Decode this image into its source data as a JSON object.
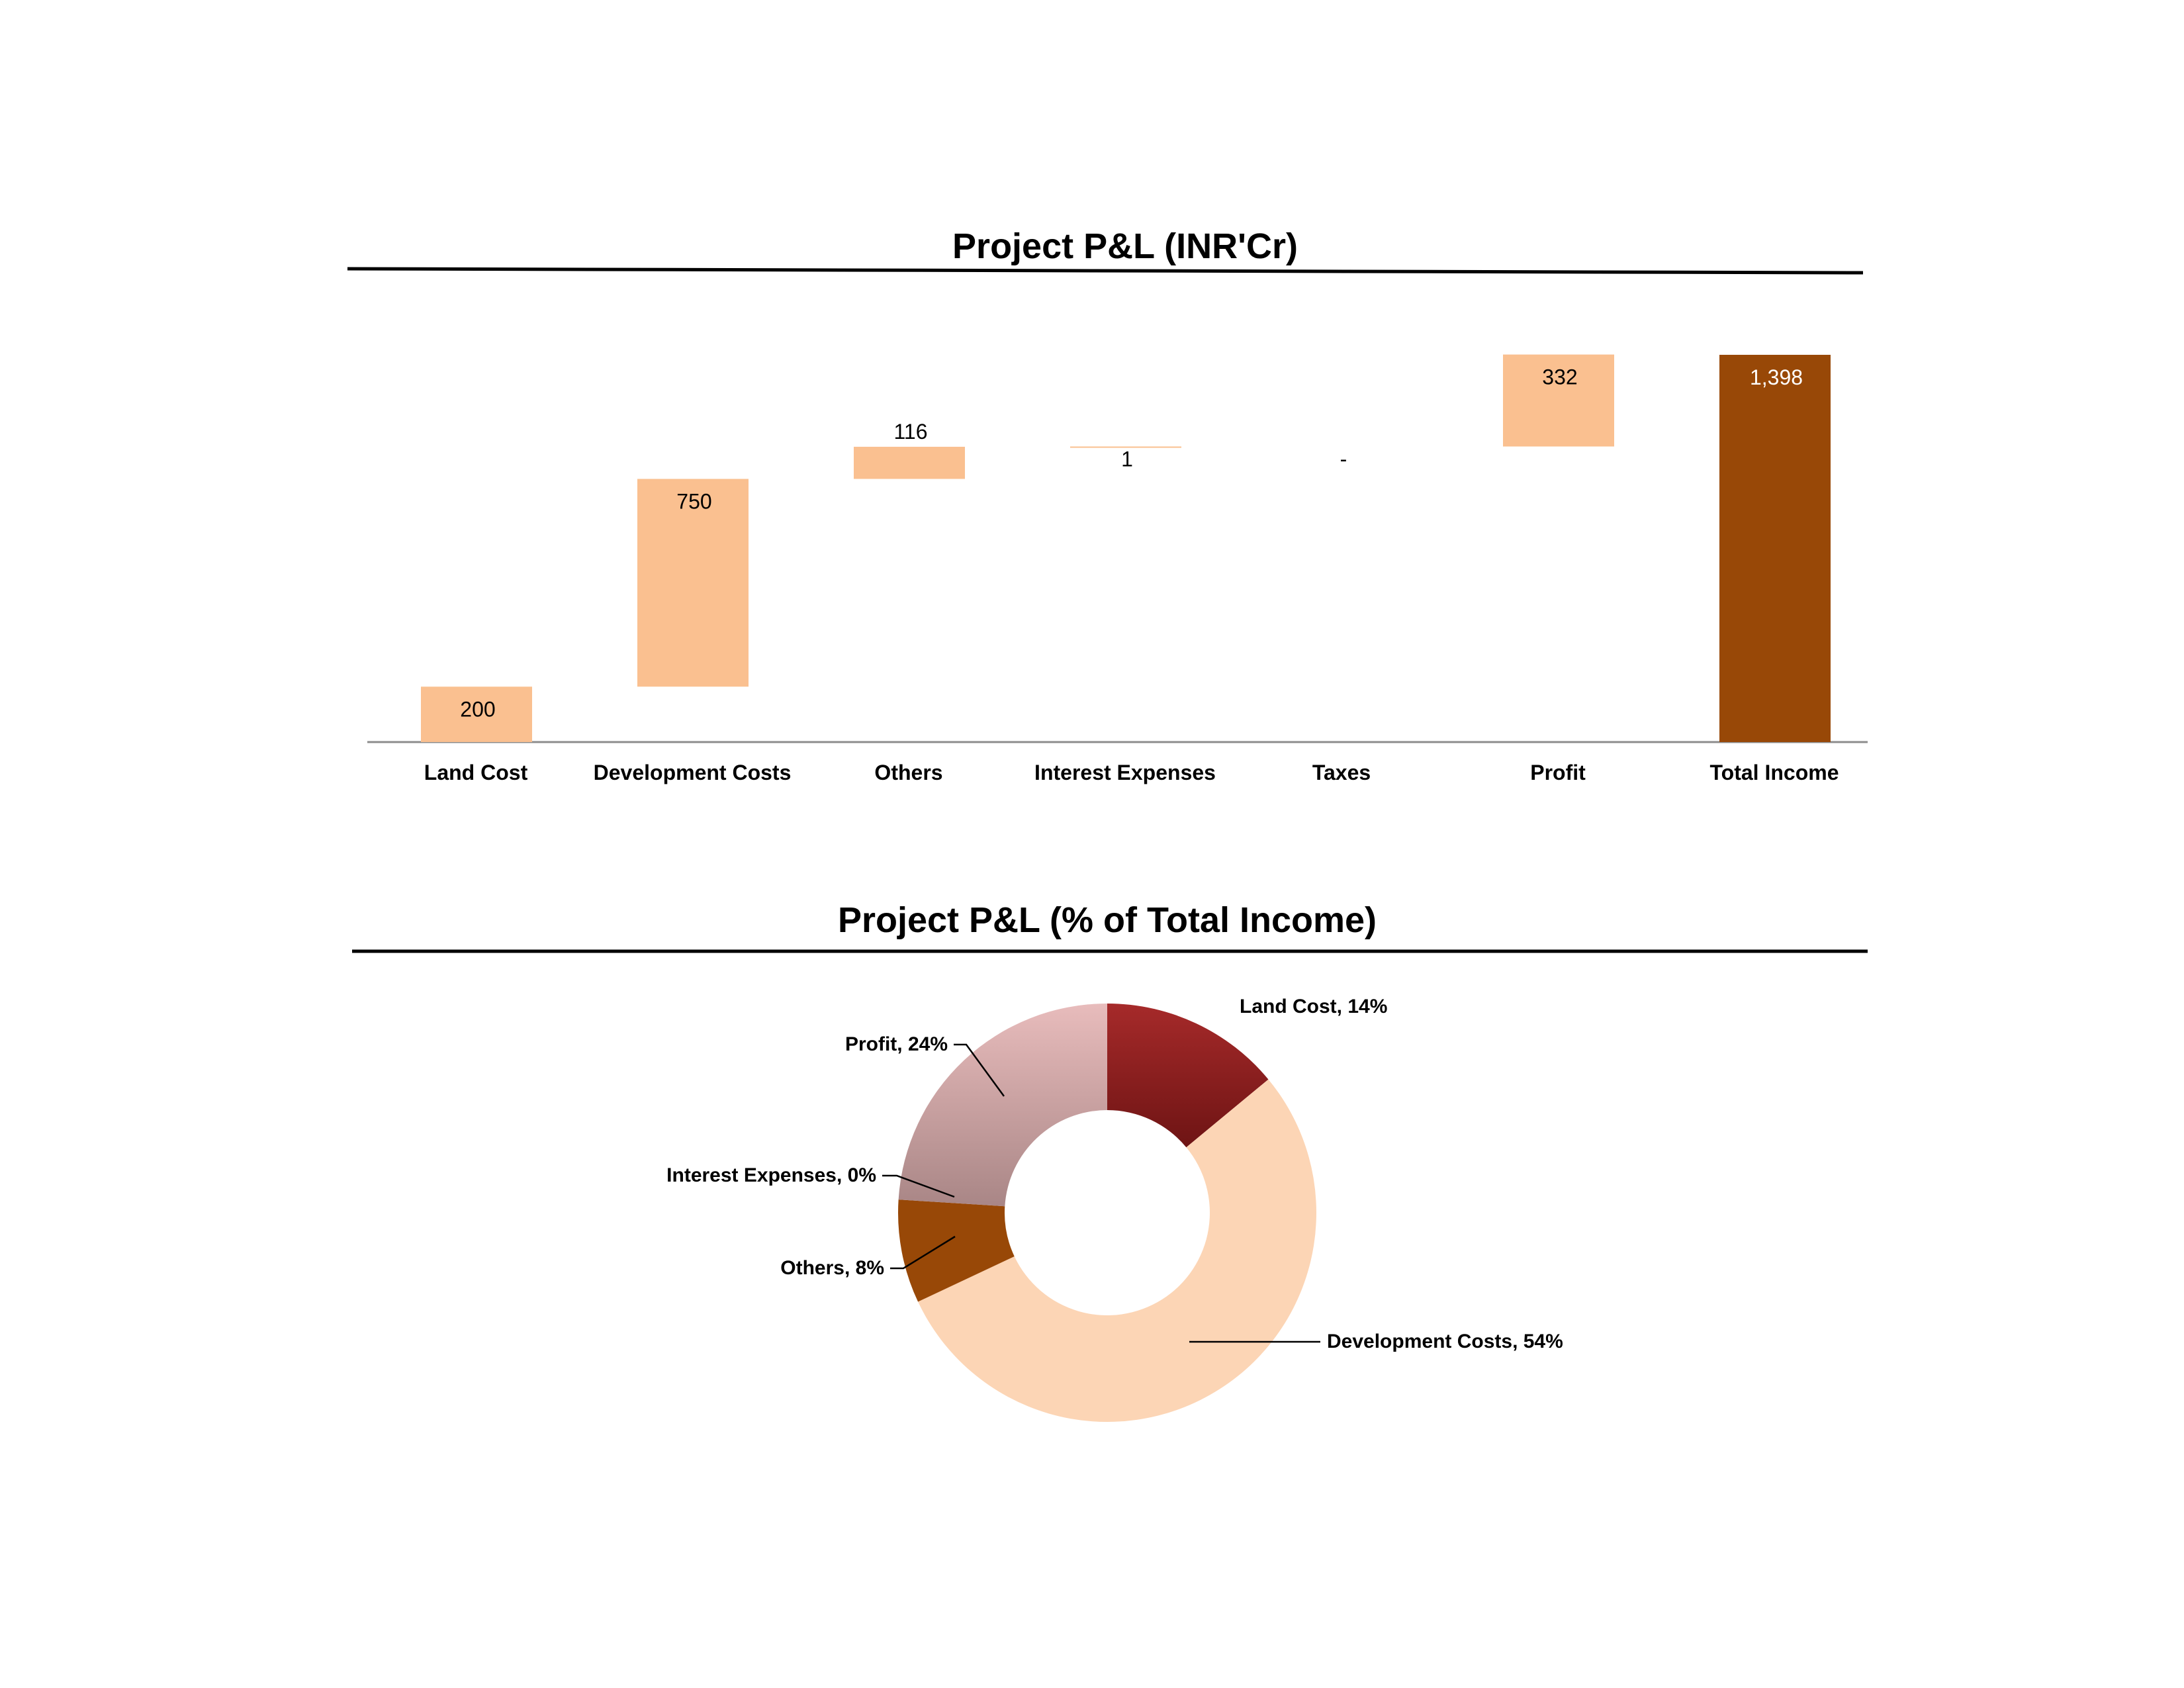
{
  "chart_data": [
    {
      "type": "bar",
      "subtype": "waterfall",
      "title": "Project P&L (INR'Cr)",
      "categories": [
        "Land Cost",
        "Development Costs",
        "Others",
        "Interest Expenses",
        "Taxes",
        "Profit",
        "Total Income"
      ],
      "values": [
        200,
        750,
        116,
        1,
        0,
        332,
        1398
      ],
      "labels": [
        "200",
        "750",
        "116",
        "1",
        "-",
        "332",
        "1,398"
      ],
      "is_total": [
        false,
        false,
        false,
        false,
        false,
        false,
        true
      ],
      "colors": {
        "step": "#FAC090",
        "total": "#984807"
      },
      "ylim": [
        0,
        1398
      ],
      "grid": false,
      "legend": "none"
    },
    {
      "type": "pie",
      "subtype": "donut",
      "title": "Project P&L (% of Total Income)",
      "slices": [
        {
          "name": "Land Cost",
          "value": 14,
          "label": "Land Cost, 14%",
          "color": "#8C1D1D"
        },
        {
          "name": "Development Costs",
          "value": 54,
          "label": "Development Costs, 54%",
          "color": "#FCD5B5"
        },
        {
          "name": "Others",
          "value": 8,
          "label": "Others, 8%",
          "color": "#984807"
        },
        {
          "name": "Interest Expenses",
          "value": 0,
          "label": "Interest Expenses, 0%",
          "color": "#C0504D"
        },
        {
          "name": "Profit",
          "value": 24,
          "label": "Profit, 24%",
          "color": "#D9A8A8"
        }
      ],
      "legend": "none"
    }
  ]
}
